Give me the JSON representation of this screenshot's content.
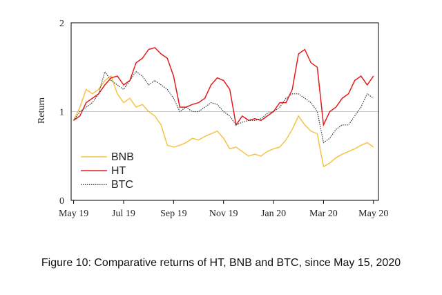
{
  "chart_data": {
    "type": "line",
    "ylabel": "Return",
    "caption": "Figure 10: Comparative returns of HT, BNB and BTC, since May 15, 2020",
    "x": [
      0,
      0.25,
      0.5,
      0.75,
      1,
      1.25,
      1.5,
      1.75,
      2,
      2.25,
      2.5,
      2.75,
      3,
      3.25,
      3.5,
      3.75,
      4,
      4.25,
      4.5,
      4.75,
      5,
      5.25,
      5.5,
      5.75,
      6,
      6.25,
      6.5,
      6.75,
      7,
      7.25,
      7.5,
      7.75,
      8,
      8.25,
      8.5,
      8.75,
      9,
      9.25,
      9.5,
      9.75,
      10,
      10.25,
      10.5,
      10.75,
      11,
      11.25,
      11.5,
      11.75,
      12
    ],
    "series": [
      {
        "name": "BNB",
        "color": "#f5c242",
        "style": "solid",
        "values": [
          0.9,
          1.05,
          1.25,
          1.2,
          1.25,
          1.35,
          1.4,
          1.2,
          1.1,
          1.15,
          1.05,
          1.08,
          1.0,
          0.95,
          0.85,
          0.62,
          0.6,
          0.62,
          0.65,
          0.7,
          0.68,
          0.72,
          0.75,
          0.78,
          0.7,
          0.58,
          0.6,
          0.55,
          0.5,
          0.52,
          0.5,
          0.55,
          0.58,
          0.6,
          0.68,
          0.8,
          0.95,
          0.85,
          0.78,
          0.75,
          0.38,
          0.42,
          0.48,
          0.52,
          0.55,
          0.58,
          0.62,
          0.65,
          0.6
        ]
      },
      {
        "name": "HT",
        "color": "#e31b1b",
        "style": "solid",
        "values": [
          0.9,
          0.95,
          1.1,
          1.15,
          1.2,
          1.3,
          1.38,
          1.4,
          1.3,
          1.35,
          1.55,
          1.6,
          1.7,
          1.72,
          1.65,
          1.6,
          1.4,
          1.05,
          1.05,
          1.08,
          1.1,
          1.15,
          1.3,
          1.38,
          1.35,
          1.25,
          0.85,
          0.95,
          0.9,
          0.92,
          0.9,
          0.95,
          1.0,
          1.1,
          1.1,
          1.25,
          1.65,
          1.7,
          1.55,
          1.5,
          0.85,
          1.0,
          1.05,
          1.15,
          1.2,
          1.35,
          1.4,
          1.3,
          1.4
        ]
      },
      {
        "name": "BTC",
        "color": "#333333",
        "style": "dotted",
        "values": [
          0.9,
          1.0,
          1.05,
          1.1,
          1.2,
          1.45,
          1.35,
          1.3,
          1.25,
          1.35,
          1.45,
          1.4,
          1.3,
          1.35,
          1.3,
          1.25,
          1.15,
          1.0,
          1.05,
          1.0,
          1.0,
          1.05,
          1.1,
          1.08,
          1.0,
          0.95,
          0.85,
          0.88,
          0.9,
          0.9,
          0.92,
          0.98,
          1.0,
          1.05,
          1.15,
          1.2,
          1.2,
          1.15,
          1.1,
          1.0,
          0.65,
          0.7,
          0.8,
          0.85,
          0.85,
          0.95,
          1.05,
          1.2,
          1.15
        ]
      }
    ],
    "xlim": [
      -0.1,
      12.2
    ],
    "xticks": [
      {
        "value": 0,
        "label": "May 19"
      },
      {
        "value": 2,
        "label": "Jul 19"
      },
      {
        "value": 4,
        "label": "Sep 19"
      },
      {
        "value": 6,
        "label": "Nov 19"
      },
      {
        "value": 8,
        "label": "Jan 20"
      },
      {
        "value": 10,
        "label": "Mar 20"
      },
      {
        "value": 12,
        "label": "May 20"
      }
    ],
    "ylim": [
      0,
      2
    ],
    "yticks": [
      0,
      1,
      2
    ],
    "grid": true,
    "legend": "lower left"
  }
}
